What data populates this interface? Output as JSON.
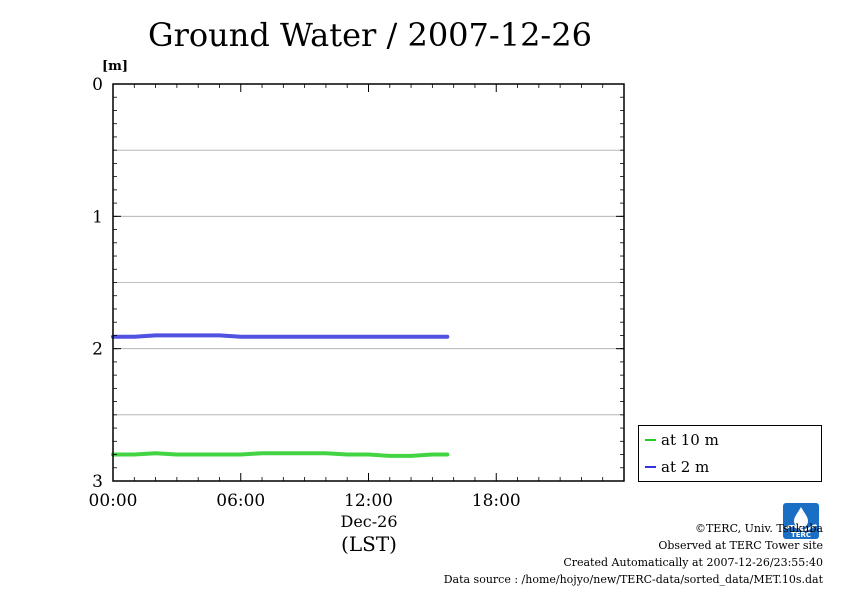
{
  "chart_data": {
    "type": "line",
    "title": "Ground Water / 2007-12-26",
    "ylabel_unit": "[m]",
    "y_ticks": [
      "0",
      "1",
      "2",
      "3"
    ],
    "ylim": [
      0,
      3
    ],
    "y_inverted": true,
    "x_ticks": [
      "00:00",
      "06:00",
      "12:00",
      "18:00"
    ],
    "x_date": "Dec-26",
    "xlabel": "(LST)",
    "xlim_hours": [
      0,
      24
    ],
    "grid": "horizontal",
    "legend_position": "right-bottom-outside",
    "series": [
      {
        "name": "at 10 m",
        "color": "#22cc22",
        "x_hours": [
          0,
          1,
          2,
          3,
          4,
          5,
          6,
          7,
          8,
          9,
          10,
          11,
          12,
          13,
          14,
          15,
          15.7
        ],
        "values": [
          2.8,
          2.8,
          2.79,
          2.8,
          2.8,
          2.8,
          2.8,
          2.79,
          2.79,
          2.79,
          2.79,
          2.8,
          2.8,
          2.81,
          2.81,
          2.8,
          2.8
        ]
      },
      {
        "name": "at 2 m",
        "color": "#3333dd",
        "x_hours": [
          0,
          1,
          2,
          3,
          4,
          5,
          6,
          7,
          8,
          9,
          10,
          11,
          12,
          13,
          14,
          15,
          15.7
        ],
        "values": [
          1.91,
          1.91,
          1.9,
          1.9,
          1.9,
          1.9,
          1.91,
          1.91,
          1.91,
          1.91,
          1.91,
          1.91,
          1.91,
          1.91,
          1.91,
          1.91,
          1.91
        ]
      }
    ]
  },
  "footer": {
    "copyright": "©TERC, Univ. Tsukuba",
    "observed": "Observed at TERC Tower site",
    "created": "Created Automatically at 2007-12-26/23:55:40",
    "source": "Data source : /home/hojyo/new/TERC-data/sorted_data/MET.10s.dat"
  },
  "logo": {
    "text": "TERC",
    "color": "#1a6fc4"
  }
}
